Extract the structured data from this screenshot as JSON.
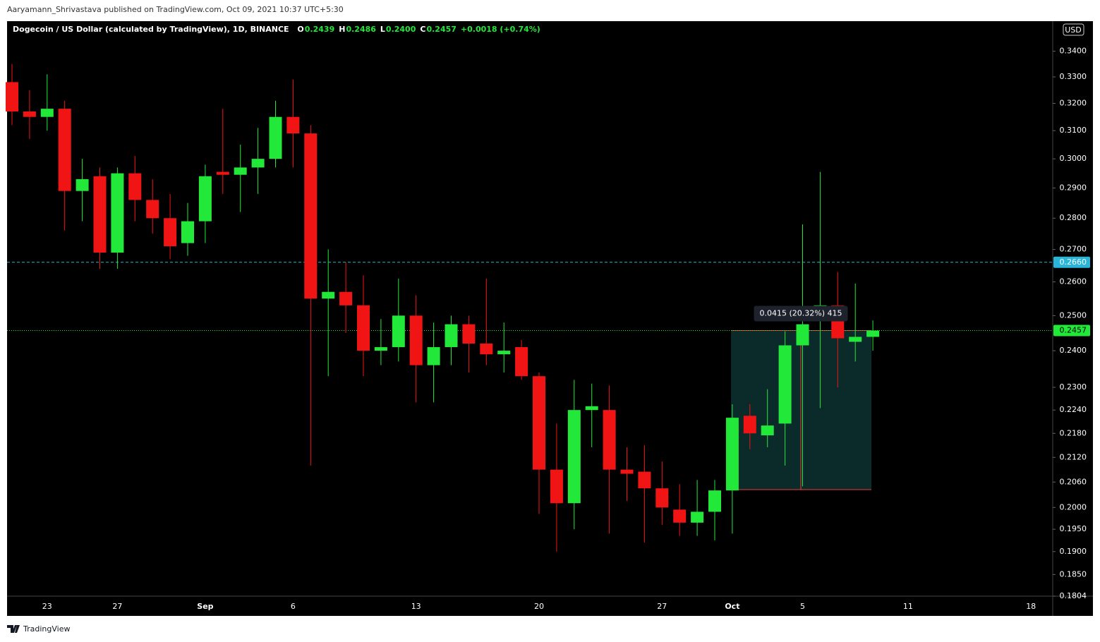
{
  "header": "Aaryamann_Shrivastava published on TradingView.com, Oct 09, 2021 10:37 UTC+5:30",
  "footer": "TradingView",
  "chart_data": {
    "type": "candlestick",
    "title": "Dogecoin / US Dollar (calculated by TradingView), 1D, BINANCE",
    "ohlc_legend": [
      {
        "label": "O",
        "value": "0.2439"
      },
      {
        "label": "H",
        "value": "0.2486"
      },
      {
        "label": "L",
        "value": "0.2400"
      },
      {
        "label": "C",
        "value": "0.2457"
      }
    ],
    "change": "+0.0018 (+0.74%)",
    "currency": "USD",
    "log_scale": true,
    "up_color": "#22e83a",
    "down_color": "#f01414",
    "categories": [
      null,
      null,
      "23",
      null,
      null,
      null,
      "27",
      null,
      null,
      null,
      null,
      "Sep",
      null,
      null,
      null,
      null,
      "6",
      null,
      null,
      null,
      null,
      null,
      null,
      "13",
      null,
      null,
      null,
      null,
      null,
      null,
      "20",
      null,
      null,
      null,
      null,
      null,
      null,
      "27",
      null,
      null,
      null,
      "Oct",
      null,
      null,
      null,
      "5",
      null,
      null,
      null,
      null,
      null,
      "11",
      null,
      null,
      null,
      null,
      null,
      null,
      "18",
      null
    ],
    "open": [
      0.328,
      0.317,
      0.315,
      0.318,
      0.289,
      0.294,
      0.269,
      0.295,
      0.286,
      0.28,
      0.272,
      0.279,
      0.2955,
      0.2945,
      0.297,
      0.3,
      0.315,
      0.309,
      0.255,
      0.257,
      0.253,
      0.24,
      0.241,
      0.25,
      0.236,
      0.241,
      0.2475,
      0.242,
      0.239,
      0.241,
      0.233,
      0.209,
      0.201,
      0.224,
      0.224,
      0.209,
      0.2085,
      0.2045,
      0.1995,
      0.1965,
      0.199,
      0.204,
      0.2225,
      0.2175,
      0.2205,
      0.2415,
      0.252,
      0.253,
      0.2425,
      0.2439,
      null,
      null,
      null,
      null,
      null,
      null,
      null,
      null,
      null,
      null
    ],
    "high": [
      0.335,
      0.325,
      0.331,
      0.321,
      0.3,
      0.297,
      0.297,
      0.301,
      0.293,
      0.288,
      0.285,
      0.298,
      0.318,
      0.305,
      0.311,
      0.321,
      0.329,
      0.312,
      0.27,
      0.266,
      0.262,
      0.249,
      0.261,
      0.256,
      0.248,
      0.25,
      0.25,
      0.261,
      0.248,
      0.243,
      0.234,
      0.2205,
      0.232,
      0.231,
      0.2305,
      0.2145,
      0.215,
      0.211,
      0.2055,
      0.2065,
      0.2065,
      0.2255,
      0.2255,
      0.2295,
      0.2455,
      0.278,
      0.2955,
      0.263,
      0.2595,
      0.2486,
      null,
      null,
      null,
      null,
      null,
      null,
      null,
      null,
      null,
      null
    ],
    "low": [
      0.312,
      0.307,
      0.31,
      0.276,
      0.279,
      0.264,
      0.264,
      0.279,
      0.275,
      0.267,
      0.268,
      0.272,
      0.288,
      0.282,
      0.288,
      0.297,
      0.297,
      0.21,
      0.233,
      0.245,
      0.233,
      0.236,
      0.237,
      0.226,
      0.226,
      0.236,
      0.234,
      0.236,
      0.234,
      0.232,
      0.1985,
      0.19,
      0.195,
      0.2145,
      0.194,
      0.2015,
      0.192,
      0.196,
      0.1935,
      0.1935,
      0.1925,
      0.194,
      0.214,
      0.2145,
      0.21,
      0.205,
      0.2245,
      0.23,
      0.237,
      0.24,
      null,
      null,
      null,
      null,
      null,
      null,
      null,
      null,
      null,
      null
    ],
    "close": [
      0.317,
      0.315,
      0.318,
      0.289,
      0.293,
      0.269,
      0.295,
      0.286,
      0.28,
      0.271,
      0.279,
      0.294,
      0.2945,
      0.297,
      0.3,
      0.315,
      0.309,
      0.255,
      0.257,
      0.253,
      0.24,
      0.241,
      0.25,
      0.236,
      0.241,
      0.2475,
      0.242,
      0.239,
      0.24,
      0.233,
      0.209,
      0.201,
      0.224,
      0.225,
      0.209,
      0.208,
      0.2045,
      0.2,
      0.1965,
      0.199,
      0.204,
      0.222,
      0.218,
      0.22,
      0.2415,
      0.2475,
      0.253,
      0.2435,
      0.2439,
      0.2457,
      null,
      null,
      null,
      null,
      null,
      null,
      null,
      null,
      null,
      null
    ],
    "ylim": [
      0.1804,
      0.3521
    ],
    "yticks": [
      {
        "value": 0.34,
        "label": "0.3400"
      },
      {
        "value": 0.33,
        "label": "0.3300"
      },
      {
        "value": 0.32,
        "label": "0.3200"
      },
      {
        "value": 0.31,
        "label": "0.3100"
      },
      {
        "value": 0.3,
        "label": "0.3000"
      },
      {
        "value": 0.29,
        "label": "0.2900"
      },
      {
        "value": 0.28,
        "label": "0.2800"
      },
      {
        "value": 0.27,
        "label": "0.2700"
      },
      {
        "value": 0.26,
        "label": "0.2600"
      },
      {
        "value": 0.25,
        "label": "0.2500"
      },
      {
        "value": 0.24,
        "label": "0.2400"
      },
      {
        "value": 0.23,
        "label": "0.2300"
      },
      {
        "value": 0.224,
        "label": "0.2240"
      },
      {
        "value": 0.218,
        "label": "0.2180"
      },
      {
        "value": 0.212,
        "label": "0.2120"
      },
      {
        "value": 0.206,
        "label": "0.2060"
      },
      {
        "value": 0.2,
        "label": "0.2000"
      },
      {
        "value": 0.195,
        "label": "0.1950"
      },
      {
        "value": 0.19,
        "label": "0.1900"
      },
      {
        "value": 0.185,
        "label": "0.1850"
      },
      {
        "value": 0.1804,
        "label": "0.1804"
      }
    ],
    "price_lines": [
      {
        "value": 0.266,
        "label": "0.2660",
        "color": "#29b6d8",
        "style": "dashed"
      },
      {
        "value": 0.2457,
        "label": "0.2457",
        "color": "#22e83a",
        "style": "dotted"
      }
    ],
    "measure": {
      "from": 0.2042,
      "to": 0.2457,
      "label": "0.0415 (20.32%) 415",
      "color": "#0b2a2a",
      "line_color": "#f03c3c"
    }
  }
}
